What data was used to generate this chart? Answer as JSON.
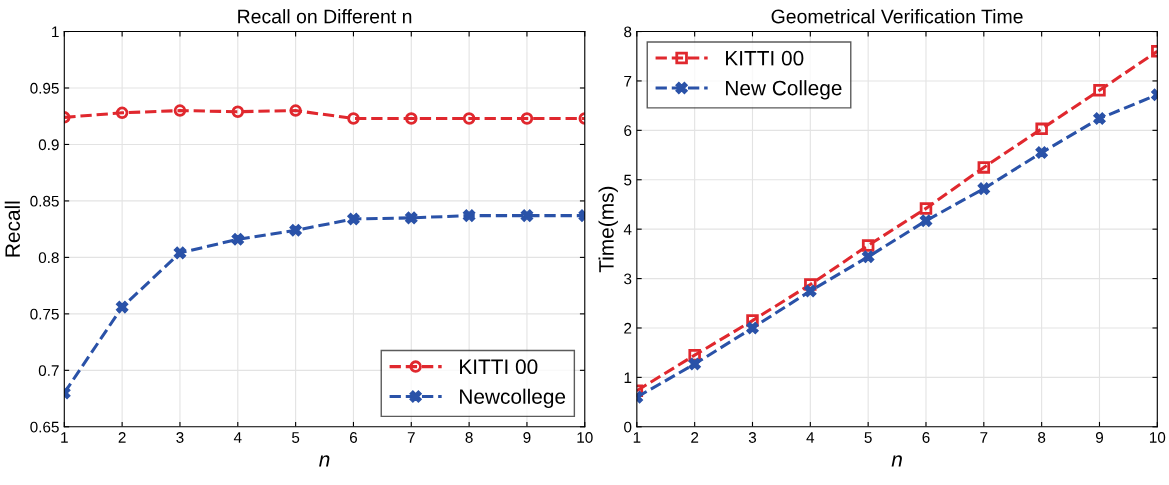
{
  "chart_data": [
    {
      "type": "line",
      "title": "Recall on Different n",
      "xlabel": "n",
      "ylabel": "Recall",
      "x": [
        1,
        2,
        3,
        4,
        5,
        6,
        7,
        8,
        9,
        10
      ],
      "xlim": [
        1,
        10
      ],
      "xticks": [
        1,
        2,
        3,
        4,
        5,
        6,
        7,
        8,
        9,
        10
      ],
      "ylim": [
        0.65,
        1
      ],
      "yticks": [
        0.65,
        0.7,
        0.75,
        0.8,
        0.85,
        0.9,
        0.95,
        1
      ],
      "grid": true,
      "legend": "bottom right",
      "line_style": "dashed",
      "series": [
        {
          "name": "KITTI 00",
          "color": "#e0282e",
          "marker": "circle",
          "values": [
            0.924,
            0.928,
            0.93,
            0.929,
            0.93,
            0.923,
            0.923,
            0.923,
            0.923,
            0.923
          ]
        },
        {
          "name": "Newcollege",
          "color": "#2a52a8",
          "marker": "cross",
          "values": [
            0.68,
            0.756,
            0.804,
            0.816,
            0.824,
            0.834,
            0.835,
            0.837,
            0.837,
            0.837
          ]
        }
      ]
    },
    {
      "type": "line",
      "title": "Geometrical Verification Time",
      "xlabel": "n",
      "ylabel": "Time(ms)",
      "x": [
        1,
        2,
        3,
        4,
        5,
        6,
        7,
        8,
        9,
        10
      ],
      "xlim": [
        1,
        10
      ],
      "xticks": [
        1,
        2,
        3,
        4,
        5,
        6,
        7,
        8,
        9,
        10
      ],
      "ylim": [
        0,
        8
      ],
      "yticks": [
        0,
        1,
        2,
        3,
        4,
        5,
        6,
        7,
        8
      ],
      "grid": true,
      "legend": "top left",
      "line_style": "dashed",
      "series": [
        {
          "name": "KITTI 00",
          "color": "#e0282e",
          "marker": "square",
          "values": [
            0.73,
            1.45,
            2.15,
            2.88,
            3.67,
            4.42,
            5.25,
            6.03,
            6.81,
            7.6
          ]
        },
        {
          "name": "New College",
          "color": "#2a52a8",
          "marker": "cross",
          "values": [
            0.6,
            1.27,
            2.0,
            2.75,
            3.44,
            4.17,
            4.82,
            5.55,
            6.24,
            6.72
          ]
        }
      ]
    }
  ]
}
